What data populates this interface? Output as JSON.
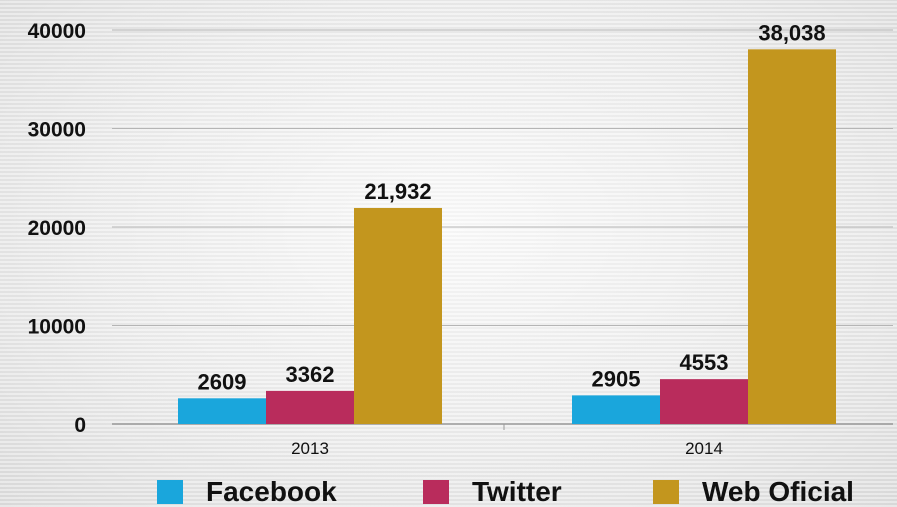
{
  "chart_data": {
    "type": "bar",
    "categories": [
      "2013",
      "2014"
    ],
    "series": [
      {
        "name": "Facebook",
        "values": [
          2609,
          2905
        ],
        "labels": [
          "2609",
          "2905"
        ],
        "color": "#1aa6dc"
      },
      {
        "name": "Twitter",
        "values": [
          3362,
          4553
        ],
        "labels": [
          "3362",
          "4553"
        ],
        "color": "#b92c5c"
      },
      {
        "name": "Web Oficial",
        "values": [
          21932,
          38038
        ],
        "labels": [
          "21,932",
          "38,038"
        ],
        "color": "#c3961e"
      }
    ],
    "y_ticks": [
      "0",
      "10000",
      "20000",
      "30000",
      "40000"
    ],
    "ylim": [
      0,
      40000
    ],
    "grid": true,
    "legend": "bottom"
  }
}
